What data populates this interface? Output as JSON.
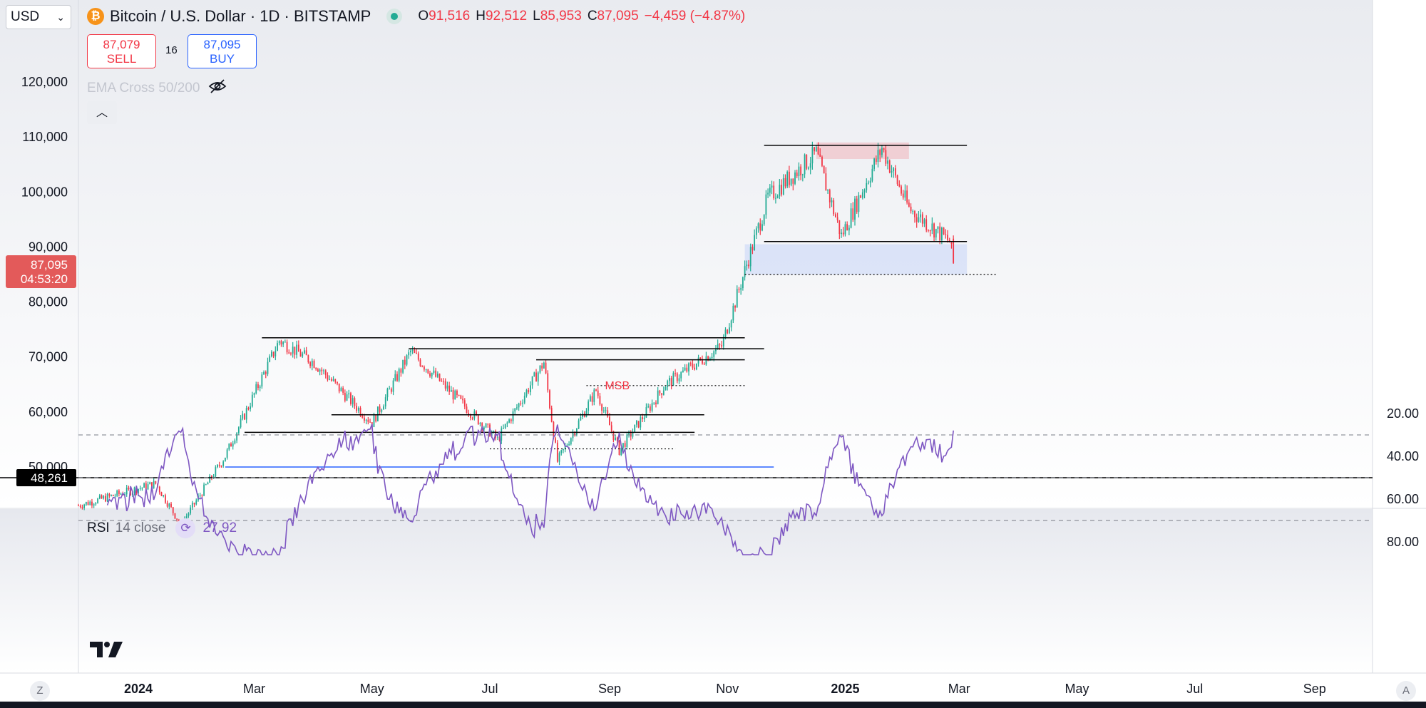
{
  "currency_select": {
    "value": "USD"
  },
  "symbol": {
    "title": "Bitcoin / U.S. Dollar · 1D · BITSTAMP",
    "icon": "bitcoin-icon",
    "ohlc": {
      "o_label": "O",
      "o": "91,516",
      "h_label": "H",
      "h": "92,512",
      "l_label": "L",
      "l": "85,953",
      "c_label": "C",
      "c": "87,095"
    },
    "change": "−4,459 (−4.87%)"
  },
  "trade": {
    "sell_price": "87,079",
    "sell_label": "SELL",
    "spread": "16",
    "buy_price": "87,095",
    "buy_label": "BUY"
  },
  "indicators": {
    "ema_label": "EMA Cross 50/200",
    "rsi_name": "RSI",
    "rsi_params": "14 close",
    "rsi_value": "27.92"
  },
  "price_axis": {
    "ticks": [
      "120,000",
      "110,000",
      "100,000",
      "90,000",
      "80,000",
      "70,000",
      "60,000",
      "50,000"
    ],
    "current_price": "87,095",
    "countdown": "04:53:20",
    "crosshair_price": "48,261"
  },
  "rsi_axis": {
    "ticks": [
      "80.00",
      "60.00",
      "40.00",
      "20.00"
    ]
  },
  "time_axis": {
    "ticks": [
      "2024",
      "Mar",
      "May",
      "Jul",
      "Sep",
      "Nov",
      "2025",
      "Mar",
      "May",
      "Jul",
      "Sep"
    ]
  },
  "annotations": {
    "msb": "MSB"
  },
  "footer": {
    "z_label": "Z",
    "a_label": "A"
  },
  "colors": {
    "up": "#22ab94",
    "down": "#f23645",
    "rsi": "#7e57c2",
    "level_line": "#000000",
    "support_line": "#2962ff"
  },
  "chart_data": {
    "type": "candlestick",
    "title": "Bitcoin / U.S. Dollar · 1D · BITSTAMP",
    "x_range": [
      "2023-12",
      "2025-09"
    ],
    "ylim": [
      40000,
      125000
    ],
    "price_anchors": [
      {
        "date": "2023-12-01",
        "close": 43000
      },
      {
        "date": "2024-01-10",
        "close": 47000
      },
      {
        "date": "2024-01-23",
        "close": 39500
      },
      {
        "date": "2024-02-15",
        "close": 52000
      },
      {
        "date": "2024-03-14",
        "close": 73000
      },
      {
        "date": "2024-04-01",
        "close": 69000
      },
      {
        "date": "2024-05-01",
        "close": 58000
      },
      {
        "date": "2024-05-21",
        "close": 71000
      },
      {
        "date": "2024-07-05",
        "close": 55000
      },
      {
        "date": "2024-07-29",
        "close": 69000
      },
      {
        "date": "2024-08-05",
        "close": 51000
      },
      {
        "date": "2024-08-25",
        "close": 64000
      },
      {
        "date": "2024-09-06",
        "close": 53000
      },
      {
        "date": "2024-09-30",
        "close": 65000
      },
      {
        "date": "2024-10-29",
        "close": 72000
      },
      {
        "date": "2024-11-12",
        "close": 88000
      },
      {
        "date": "2024-11-22",
        "close": 99000
      },
      {
        "date": "2024-12-17",
        "close": 107000
      },
      {
        "date": "2024-12-30",
        "close": 92000
      },
      {
        "date": "2025-01-20",
        "close": 108000
      },
      {
        "date": "2025-02-03",
        "close": 97000
      },
      {
        "date": "2025-02-24",
        "close": 91000
      },
      {
        "date": "2025-02-26",
        "close": 87095
      }
    ],
    "rsi": {
      "period": 14,
      "last": 27.92,
      "levels": [
        70,
        50,
        30
      ],
      "ylim": [
        20,
        85
      ]
    },
    "levels": [
      {
        "price": 108500,
        "from": "2024-11-20",
        "to": "2025-03-05",
        "style": "solid"
      },
      {
        "price": 91000,
        "from": "2024-11-20",
        "to": "2025-03-05",
        "style": "solid"
      },
      {
        "price": 85000,
        "from": "2024-11-10",
        "to": "2025-03-20",
        "style": "dotted"
      },
      {
        "price": 73500,
        "from": "2024-03-05",
        "to": "2024-11-10",
        "style": "solid"
      },
      {
        "price": 71500,
        "from": "2024-05-20",
        "to": "2024-11-20",
        "style": "solid"
      },
      {
        "price": 69500,
        "from": "2024-07-25",
        "to": "2024-11-10",
        "style": "solid"
      },
      {
        "price": 64800,
        "from": "2024-08-20",
        "to": "2024-11-10",
        "style": "dotted"
      },
      {
        "price": 59500,
        "from": "2024-04-10",
        "to": "2024-10-20",
        "style": "solid"
      },
      {
        "price": 56300,
        "from": "2024-02-25",
        "to": "2024-10-15",
        "style": "solid"
      },
      {
        "price": 53300,
        "from": "2024-07-01",
        "to": "2024-10-05",
        "style": "dotted"
      },
      {
        "price": 50000,
        "from": "2024-02-15",
        "to": "2024-11-25",
        "style": "solid-blue"
      }
    ],
    "zones": [
      {
        "from": "2024-12-17",
        "to": "2025-02-03",
        "low": 106000,
        "high": 109000,
        "color": "red"
      },
      {
        "from": "2024-11-10",
        "to": "2025-03-05",
        "low": 85000,
        "high": 90500,
        "color": "blue"
      }
    ]
  }
}
